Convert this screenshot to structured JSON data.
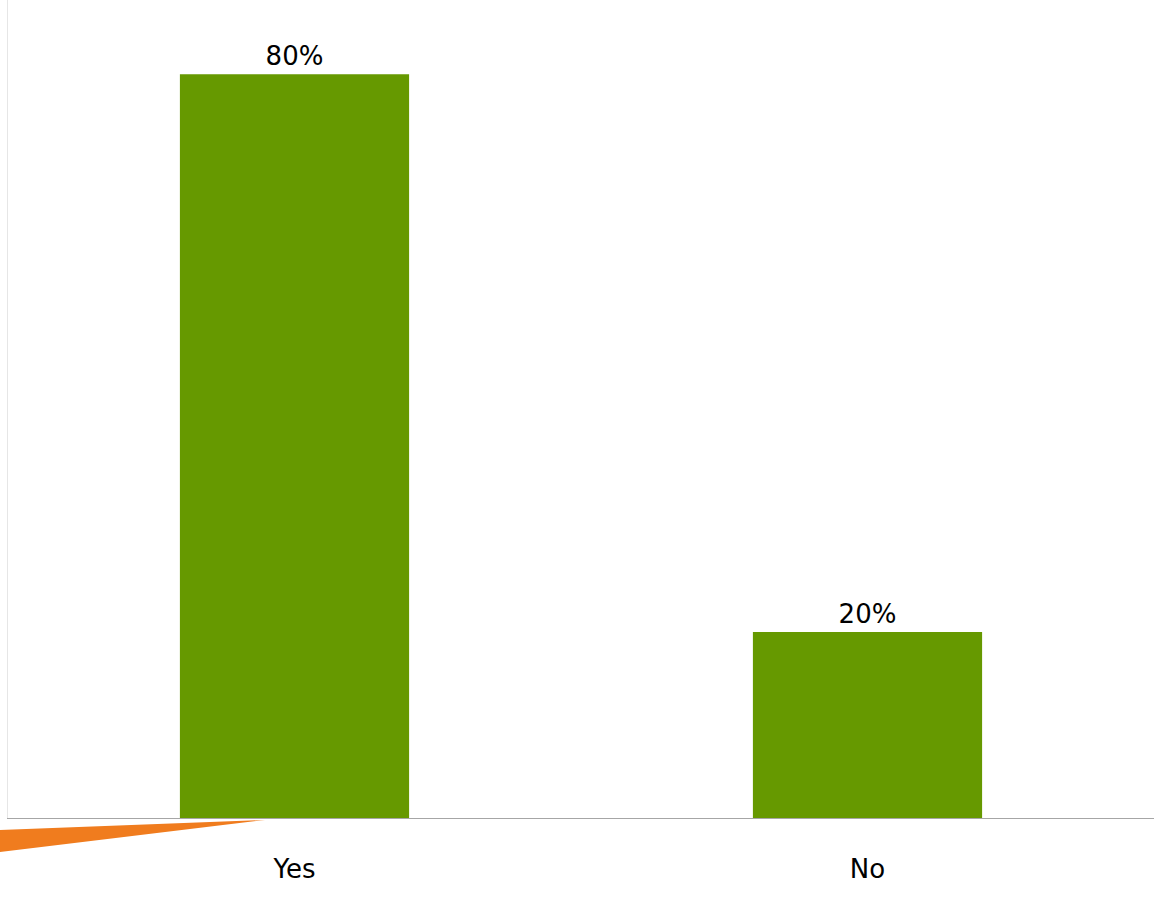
{
  "chart_data": {
    "type": "bar",
    "categories": [
      "Yes",
      "No"
    ],
    "values": [
      80,
      20
    ],
    "value_labels": [
      "80%",
      "20%"
    ],
    "data_labels": true,
    "color": "#669900",
    "ylim": [
      0,
      88
    ],
    "yticks": [],
    "tick_labels": "x",
    "grid": false
  }
}
